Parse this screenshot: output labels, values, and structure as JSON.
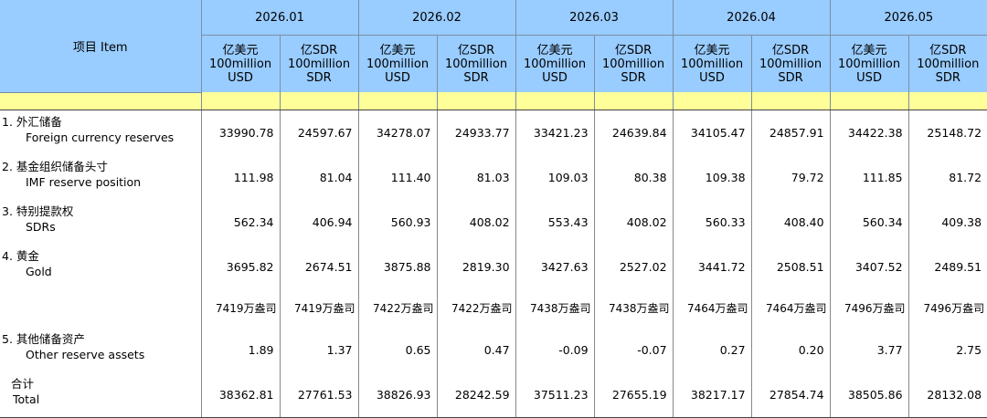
{
  "header": {
    "item_label": "项目 Item",
    "periods": [
      "2026.01",
      "2026.02",
      "2026.03",
      "2026.04",
      "2026.05"
    ],
    "unit_usd": [
      "亿美元",
      "100million",
      "USD"
    ],
    "unit_sdr": [
      "亿SDR",
      "100million",
      "SDR"
    ]
  },
  "rows": [
    {
      "cn": "1.  外汇储备",
      "en": "Foreign currency reserves",
      "values": [
        "33990.78",
        "24597.67",
        "34278.07",
        "24933.77",
        "33421.23",
        "24639.84",
        "34105.47",
        "24857.91",
        "34422.38",
        "25148.72"
      ]
    },
    {
      "cn": "2.  基金组织储备头寸",
      "en": "IMF reserve position",
      "values": [
        "111.98",
        "81.04",
        "111.40",
        "81.03",
        "109.03",
        "80.38",
        "109.38",
        "79.72",
        "111.85",
        "81.72"
      ]
    },
    {
      "cn": "3.  特别提款权",
      "en": "SDRs",
      "values": [
        "562.34",
        "406.94",
        "560.93",
        "408.02",
        "553.43",
        "408.02",
        "560.33",
        "408.40",
        "560.34",
        "409.38"
      ]
    },
    {
      "cn": "4.  黄金",
      "en": "Gold",
      "values": [
        "3695.82",
        "2674.51",
        "3875.88",
        "2819.30",
        "3427.63",
        "2527.02",
        "3441.72",
        "2508.51",
        "3407.52",
        "2489.51"
      ]
    },
    {
      "cn": "",
      "en": "",
      "values": [
        "7419万盎司",
        "7419万盎司",
        "7422万盎司",
        "7422万盎司",
        "7438万盎司",
        "7438万盎司",
        "7464万盎司",
        "7464万盎司",
        "7496万盎司",
        "7496万盎司"
      ]
    },
    {
      "cn": "5.  其他储备资产",
      "en": "Other reserve assets",
      "values": [
        "1.89",
        "1.37",
        "0.65",
        "0.47",
        "-0.09",
        "-0.07",
        "0.27",
        "0.20",
        "3.77",
        "2.75"
      ]
    },
    {
      "cn": "合计",
      "en": "Total",
      "values": [
        "38362.81",
        "27761.53",
        "38826.93",
        "28242.59",
        "37511.23",
        "27655.19",
        "38217.17",
        "27854.74",
        "38505.86",
        "28132.08"
      ]
    }
  ]
}
